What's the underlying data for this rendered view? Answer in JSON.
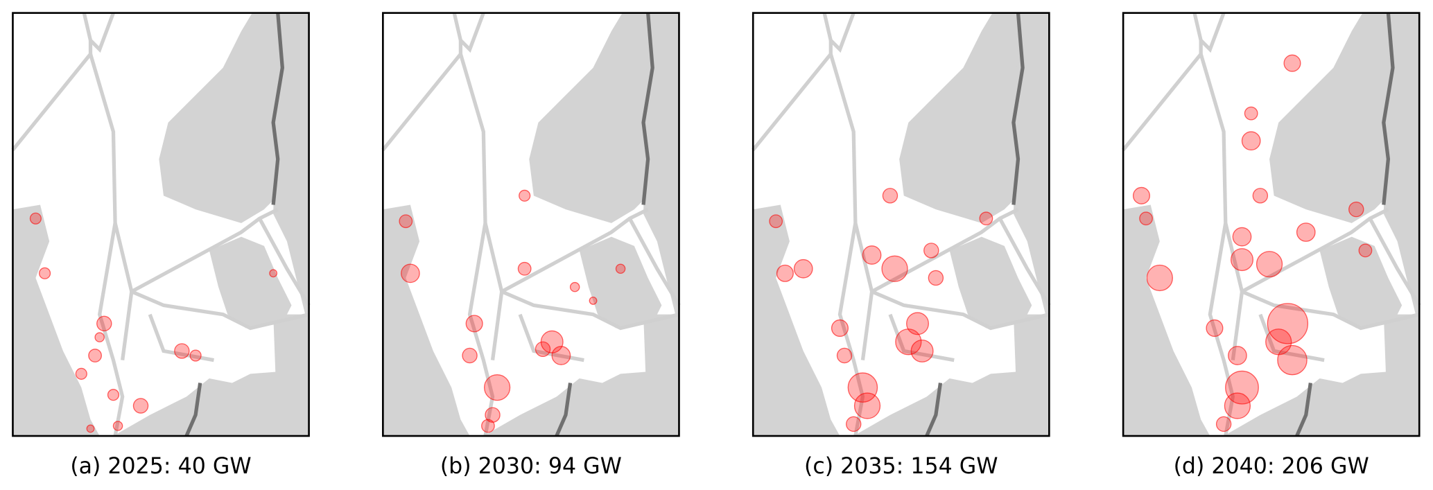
{
  "panels": [
    {
      "caption": "(a) 2025: 40 GW"
    },
    {
      "caption": "(b) 2030: 94 GW"
    },
    {
      "caption": "(c) 2035: 154 GW"
    },
    {
      "caption": "(d) 2040: 206 GW"
    }
  ]
}
